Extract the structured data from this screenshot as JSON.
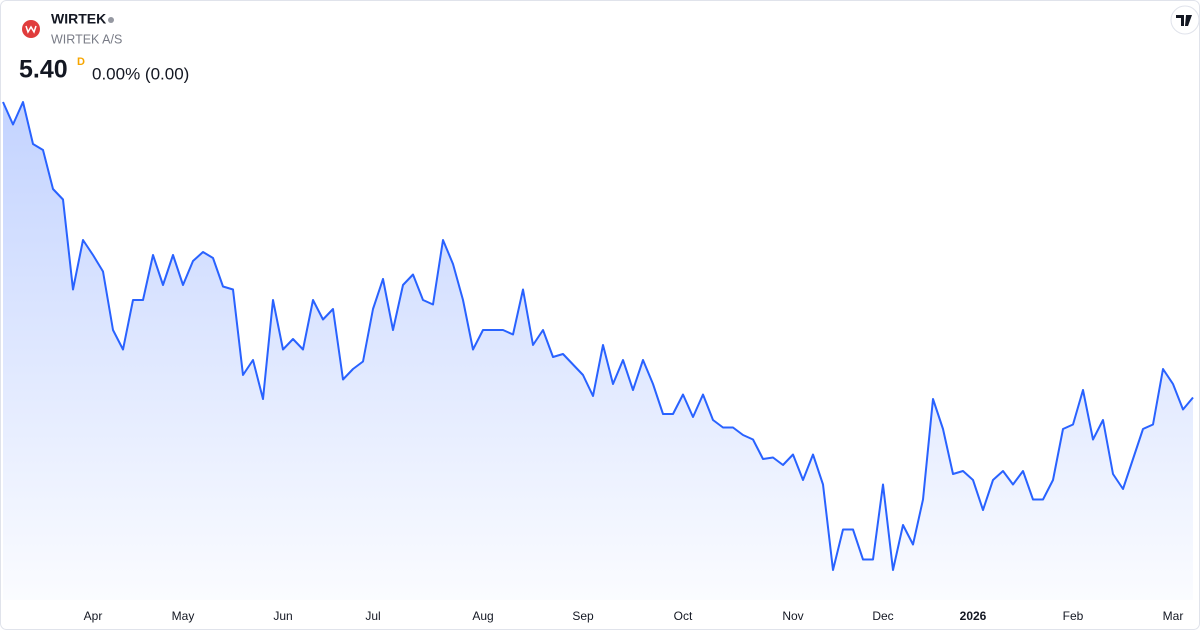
{
  "header": {
    "symbol": "WIRTEK",
    "name": "WIRTEK A/S",
    "price": "5.40",
    "price_marker": "D",
    "change": "0.00% (0.00)"
  },
  "chart_data": {
    "type": "area",
    "categories": [
      null,
      null,
      null,
      null,
      null,
      null,
      null,
      null,
      null,
      "Apr",
      null,
      null,
      null,
      null,
      null,
      null,
      null,
      null,
      "May",
      null,
      null,
      null,
      null,
      null,
      null,
      null,
      null,
      null,
      "Jun",
      null,
      null,
      null,
      null,
      null,
      null,
      null,
      null,
      "Jul",
      null,
      null,
      null,
      null,
      null,
      null,
      null,
      null,
      null,
      null,
      "Aug",
      null,
      null,
      null,
      null,
      null,
      null,
      null,
      null,
      null,
      "Sep",
      null,
      null,
      null,
      null,
      null,
      null,
      null,
      null,
      null,
      "Oct",
      null,
      null,
      null,
      null,
      null,
      null,
      null,
      null,
      null,
      null,
      "Nov",
      null,
      null,
      null,
      null,
      null,
      null,
      null,
      null,
      "Dec",
      null,
      null,
      null,
      null,
      null,
      null,
      null,
      null,
      "2026",
      null,
      null,
      null,
      null,
      null,
      null,
      null,
      null,
      null,
      "Feb",
      null,
      null,
      null,
      null,
      null,
      null,
      null,
      null,
      null,
      "Mar",
      null,
      null
    ],
    "series": [
      {
        "color": "#2962ff",
        "values": [
          7.37,
          7.22,
          7.37,
          7.09,
          7.05,
          6.79,
          6.72,
          6.12,
          6.45,
          6.35,
          6.24,
          5.85,
          5.72,
          6.05,
          6.05,
          6.35,
          6.15,
          6.35,
          6.15,
          6.31,
          6.37,
          6.33,
          6.14,
          6.12,
          5.55,
          5.65,
          5.39,
          6.05,
          5.72,
          5.79,
          5.72,
          6.05,
          5.92,
          5.99,
          5.52,
          5.59,
          5.64,
          5.99,
          6.19,
          5.85,
          6.15,
          6.22,
          6.05,
          6.02,
          6.45,
          6.29,
          6.05,
          5.72,
          5.85,
          5.85,
          5.85,
          5.82,
          6.12,
          5.75,
          5.85,
          5.67,
          5.69,
          5.62,
          5.55,
          5.41,
          5.75,
          5.49,
          5.65,
          5.45,
          5.65,
          5.49,
          5.29,
          5.29,
          5.42,
          5.27,
          5.42,
          5.25,
          5.2,
          5.2,
          5.15,
          5.12,
          4.99,
          5.0,
          4.95,
          5.02,
          4.85,
          5.02,
          4.82,
          4.25,
          4.52,
          4.52,
          4.32,
          4.32,
          4.82,
          4.25,
          4.55,
          4.42,
          4.72,
          5.39,
          5.19,
          4.89,
          4.91,
          4.85,
          4.65,
          4.85,
          4.91,
          4.82,
          4.91,
          4.72,
          4.72,
          4.85,
          5.19,
          5.22,
          5.45,
          5.12,
          5.25,
          4.89,
          4.79,
          4.99,
          5.19,
          5.22,
          5.59,
          5.49,
          5.32,
          5.4
        ]
      }
    ],
    "ylim": [
      4.05,
      7.45
    ]
  }
}
